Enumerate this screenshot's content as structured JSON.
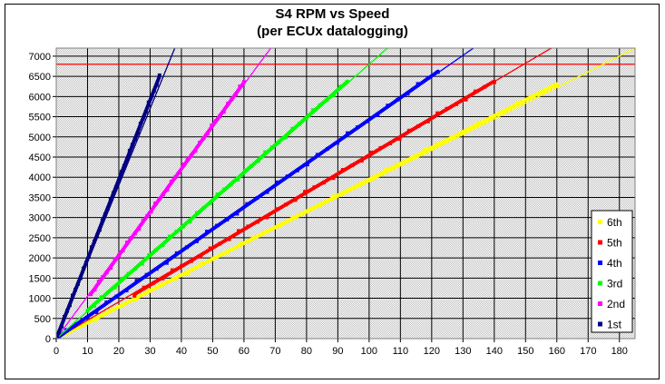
{
  "chart_data": {
    "type": "scatter",
    "title": "S4 RPM vs Speed",
    "subtitle": "(per ECUx datalogging)",
    "xlabel": "",
    "ylabel": "",
    "xlim": [
      0,
      185
    ],
    "ylim": [
      0,
      7200
    ],
    "xticks": [
      0,
      10,
      20,
      30,
      40,
      50,
      60,
      70,
      80,
      90,
      100,
      110,
      120,
      130,
      140,
      150,
      160,
      170,
      180
    ],
    "yticks": [
      0,
      500,
      1000,
      1500,
      2000,
      2500,
      3000,
      3500,
      4000,
      4500,
      5000,
      5500,
      6000,
      6500,
      7000
    ],
    "grid": true,
    "plot_background": "#c0c0c0",
    "legend_position": "right",
    "redline": {
      "y": 6800,
      "color": "#ff0000"
    },
    "series": [
      {
        "name": "6th",
        "color": "#ffff00",
        "trend_slope": 38.9,
        "data_x": [
          0,
          160
        ],
        "data_y": [
          0,
          6310
        ]
      },
      {
        "name": "5th",
        "color": "#ff0000",
        "trend_slope": 45.5,
        "data_x": [
          25,
          140
        ],
        "data_y": [
          1100,
          6380
        ]
      },
      {
        "name": "4th",
        "color": "#0000ff",
        "trend_slope": 54.0,
        "data_x": [
          0,
          122
        ],
        "data_y": [
          0,
          6620
        ]
      },
      {
        "name": "3rd",
        "color": "#00ff00",
        "trend_slope": 68.0,
        "data_x": [
          10,
          93
        ],
        "data_y": [
          700,
          6370
        ]
      },
      {
        "name": "2nd",
        "color": "#ff00ff",
        "trend_slope": 105.0,
        "data_x": [
          11,
          60
        ],
        "data_y": [
          1100,
          6350
        ]
      },
      {
        "name": "1st",
        "color": "#000080",
        "trend_slope": 190.0,
        "data_x": [
          0,
          33
        ],
        "data_y": [
          0,
          6500
        ]
      }
    ]
  }
}
